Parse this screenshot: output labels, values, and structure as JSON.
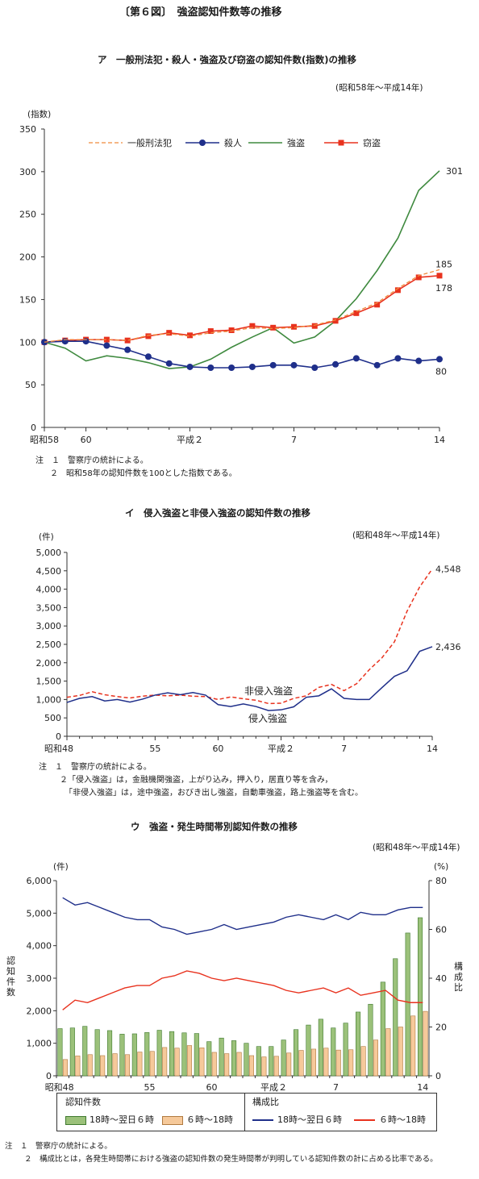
{
  "figure_title": "〔第６図〕　強盗認知件数等の推移",
  "charts": {
    "a": {
      "title": "ア　一般刑法犯・殺人・強盗及び窃盗の認知件数(指数)の推移",
      "range": "(昭和58年～平成14年)",
      "unit": "(指数)",
      "notes": [
        "注　１　警察庁の統計による。",
        "２　昭和58年の認知件数を100とした指数である。"
      ],
      "end_labels": [
        "301",
        "185",
        "178",
        "80"
      ]
    },
    "b": {
      "title": "イ　侵入強盗と非侵入強盗の認知件数の推移",
      "range": "(昭和48年～平成14年)",
      "unit": "(件)",
      "notes": [
        "注　１　警察庁の統計による。",
        "２「侵入強盗」は，金融機関強盗，上がり込み，押入り，居直り等を含み，",
        "「非侵入強盗」は，途中強盗，おびき出し強盗，自動車強盗，路上強盗等を含む。"
      ],
      "end_labels": [
        "4,548",
        "2,436"
      ]
    },
    "c": {
      "title": "ウ　強盗・発生時間帯別認知件数の推移",
      "range": "(昭和48年～平成14年)",
      "unit_left": "(件)",
      "unit_right": "(%)",
      "ylabel_left": "認知件数",
      "ylabel_right": "構成比",
      "legend_group_left": "認知件数",
      "legend_group_right": "構成比",
      "notes": [
        "注　１　警察庁の統計による。",
        "２　構成比とは，各発生時間帯における強盗の認知件数の発生時間帯が判明している認知件数の計に占める比率である。"
      ]
    }
  },
  "chart_data": [
    {
      "type": "line",
      "title": "ア　一般刑法犯・殺人・強盗及び窃盗の認知件数(指数)の推移",
      "x": [
        58,
        59,
        60,
        61,
        62,
        63,
        1,
        2,
        3,
        4,
        5,
        6,
        7,
        8,
        9,
        10,
        11,
        12,
        13,
        14
      ],
      "xticks": [
        "昭和58",
        "60",
        "平成２",
        "7",
        "14"
      ],
      "xtick_index": [
        0,
        2,
        7,
        12,
        19
      ],
      "ylim": [
        0,
        350
      ],
      "yticks": [
        0,
        50,
        100,
        150,
        200,
        250,
        300,
        350
      ],
      "series": [
        {
          "name": "一般刑法犯",
          "color": "#f08a3c",
          "dash": true,
          "marker": "none",
          "values": [
            100,
            103,
            103,
            103,
            102,
            108,
            110,
            107,
            111,
            113,
            117,
            116,
            117,
            120,
            126,
            136,
            146,
            163,
            178,
            185
          ]
        },
        {
          "name": "殺人",
          "color": "#1f2f8a",
          "marker": "circle",
          "values": [
            100,
            101,
            101,
            96,
            91,
            83,
            75,
            71,
            70,
            70,
            71,
            73,
            73,
            70,
            74,
            81,
            73,
            81,
            78,
            80
          ]
        },
        {
          "name": "強盗",
          "color": "#3f8a3f",
          "marker": "none",
          "values": [
            100,
            93,
            78,
            84,
            81,
            76,
            69,
            71,
            80,
            94,
            106,
            117,
            99,
            106,
            125,
            151,
            184,
            222,
            278,
            301
          ]
        },
        {
          "name": "窃盗",
          "color": "#e8321e",
          "marker": "square",
          "values": [
            100,
            102,
            103,
            103,
            102,
            107,
            111,
            108,
            113,
            114,
            119,
            117,
            118,
            119,
            125,
            134,
            144,
            161,
            176,
            178
          ]
        }
      ]
    },
    {
      "type": "line",
      "title": "イ　侵入強盗と非侵入強盗の認知件数の推移",
      "x": [
        48,
        49,
        50,
        51,
        52,
        53,
        54,
        55,
        56,
        57,
        58,
        59,
        60,
        61,
        62,
        63,
        1,
        2,
        3,
        4,
        5,
        6,
        7,
        8,
        9,
        10,
        11,
        12,
        13,
        14
      ],
      "xticks": [
        "昭和48",
        "55",
        "60",
        "平成２",
        "7",
        "14"
      ],
      "xtick_index": [
        0,
        7,
        12,
        17,
        22,
        29
      ],
      "ylim": [
        0,
        5000
      ],
      "yticks": [
        "0",
        "500",
        "1,000",
        "1,500",
        "2,000",
        "2,500",
        "3,000",
        "3,500",
        "4,000",
        "4,500",
        "5,000"
      ],
      "series": [
        {
          "name": "非侵入強盗",
          "color": "#e8321e",
          "dash": true,
          "values": [
            1060,
            1110,
            1210,
            1130,
            1080,
            1040,
            1090,
            1120,
            1100,
            1120,
            1090,
            1080,
            1000,
            1070,
            1020,
            980,
            890,
            900,
            1030,
            1100,
            1330,
            1410,
            1240,
            1430,
            1810,
            2130,
            2570,
            3400,
            4060,
            4548
          ]
        },
        {
          "name": "侵入強盗",
          "color": "#1f2f8a",
          "values": [
            920,
            1030,
            1080,
            960,
            1000,
            930,
            1010,
            1120,
            1180,
            1130,
            1190,
            1120,
            860,
            810,
            880,
            810,
            700,
            720,
            800,
            1060,
            1100,
            1290,
            1030,
            1000,
            1000,
            1320,
            1630,
            1780,
            2310,
            2436
          ]
        }
      ],
      "annotations": [
        "非侵入強盗",
        "侵入強盗"
      ]
    },
    {
      "type": "bar",
      "title": "ウ　強盗・発生時間帯別認知件数の推移",
      "x": [
        48,
        49,
        50,
        51,
        52,
        53,
        54,
        55,
        56,
        57,
        58,
        59,
        60,
        61,
        62,
        63,
        1,
        2,
        3,
        4,
        5,
        6,
        7,
        8,
        9,
        10,
        11,
        12,
        13,
        14
      ],
      "xticks": [
        "昭和48",
        "55",
        "60",
        "平成２",
        "7",
        "14"
      ],
      "xtick_index": [
        0,
        7,
        12,
        17,
        22,
        29
      ],
      "ylim_left": [
        0,
        6000
      ],
      "yticks_left": [
        "0",
        "1,000",
        "2,000",
        "3,000",
        "4,000",
        "5,000",
        "6,000"
      ],
      "ylim_right": [
        0,
        80
      ],
      "yticks_right": [
        "0",
        "20",
        "40",
        "60",
        "80"
      ],
      "series": [
        {
          "name": "18時～翌日６時",
          "kind": "bar",
          "axis": "left",
          "color": "#9bc17a",
          "values": [
            1450,
            1470,
            1520,
            1420,
            1390,
            1280,
            1290,
            1330,
            1400,
            1360,
            1320,
            1300,
            1050,
            1160,
            1080,
            1000,
            900,
            900,
            1100,
            1420,
            1560,
            1740,
            1470,
            1620,
            1960,
            2200,
            2880,
            3600,
            4390,
            4860
          ]
        },
        {
          "name": "６時～18時",
          "kind": "bar",
          "axis": "left",
          "color": "#f6c99a",
          "values": [
            500,
            610,
            650,
            620,
            680,
            650,
            730,
            750,
            870,
            850,
            930,
            860,
            720,
            680,
            720,
            620,
            580,
            600,
            700,
            780,
            820,
            850,
            790,
            800,
            900,
            1100,
            1450,
            1500,
            1840,
            1980
          ]
        },
        {
          "name": "18時～翌日６時",
          "kind": "line",
          "axis": "right",
          "color": "#1f2f8a",
          "values": [
            73,
            70,
            71,
            69,
            67,
            65,
            64,
            64,
            61,
            60,
            58,
            59,
            60,
            62,
            60,
            61,
            62,
            63,
            65,
            66,
            65,
            64,
            66,
            64,
            67,
            66,
            66,
            68,
            69,
            69
          ]
        },
        {
          "name": "６時～18時",
          "kind": "line",
          "axis": "right",
          "color": "#e8321e",
          "values": [
            27,
            31,
            30,
            32,
            34,
            36,
            37,
            37,
            40,
            41,
            43,
            42,
            40,
            39,
            40,
            39,
            38,
            37,
            35,
            34,
            35,
            36,
            34,
            36,
            33,
            34,
            35,
            31,
            30,
            30
          ]
        }
      ]
    }
  ]
}
